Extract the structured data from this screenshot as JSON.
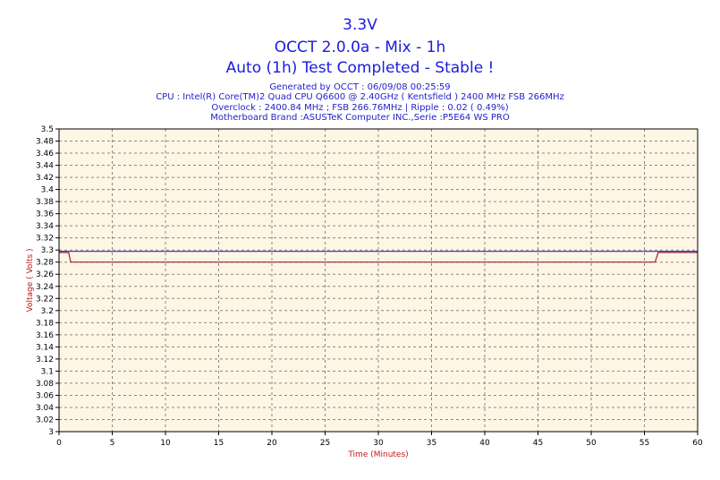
{
  "chart_data": {
    "type": "line",
    "title": "3.3V",
    "subtitle": "OCCT 2.0.0a - Mix - 1h",
    "status": "Auto (1h) Test Completed - Stable !",
    "info_lines": [
      "Generated by OCCT : 06/09/08 00:25:59",
      "CPU : Intel(R) Core(TM)2 Quad CPU Q6600 @ 2.40GHz ( Kentsfield ) 2400 MHz FSB 266MHz",
      "Overclock : 2400.84 MHz ; FSB 266.76MHz | Ripple : 0.02 ( 0.49%)",
      "Motherboard Brand :ASUSTeK Computer INC.,Serie :P5E64 WS PRO"
    ],
    "xlabel": "Time (Minutes)",
    "ylabel": "Voltage ( Volts )",
    "xlim": [
      0,
      60
    ],
    "ylim": [
      3.0,
      3.5
    ],
    "xticks": [
      0,
      5,
      10,
      15,
      20,
      25,
      30,
      35,
      40,
      45,
      50,
      55,
      60
    ],
    "yticks": [
      "3.5",
      "3.48",
      "3.46",
      "3.44",
      "3.42",
      "3.4",
      "3.38",
      "3.36",
      "3.34",
      "3.32",
      "3.3",
      "3.28",
      "3.26",
      "3.24",
      "3.22",
      "3.2",
      "3.18",
      "3.16",
      "3.14",
      "3.12",
      "3.1",
      "3.08",
      "3.06",
      "3.04",
      "3.02",
      "3"
    ],
    "grid": true,
    "plot_background": "#fef6e4",
    "series": [
      {
        "color": "#a01c3c",
        "x": [
          0,
          0.9,
          1.1,
          56.0,
          56.3,
          60
        ],
        "y": [
          3.296,
          3.296,
          3.28,
          3.28,
          3.296,
          3.296
        ]
      },
      {
        "color": "#4040c0",
        "x": [
          0,
          60
        ],
        "y": [
          3.298,
          3.298
        ]
      }
    ]
  }
}
